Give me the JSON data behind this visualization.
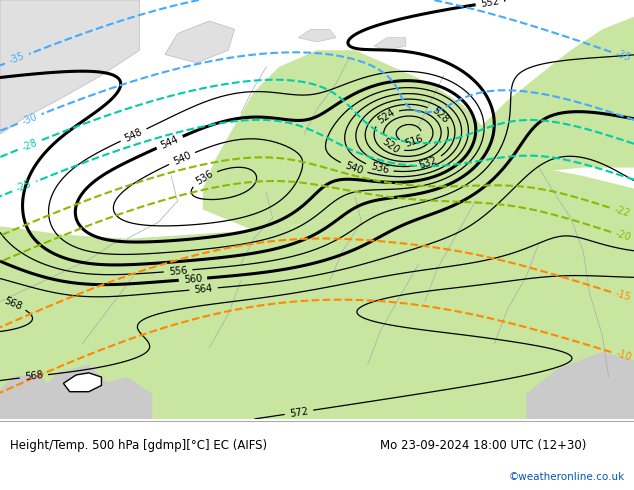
{
  "title_left": "Height/Temp. 500 hPa [gdmp][°C] EC (AIFS)",
  "title_right": "Mo 23-09-2024 18:00 UTC (12+30)",
  "credit": "©weatheronline.co.uk",
  "bg_color_land_light": "#c8e6a0",
  "bg_color_sea": "#d8eef8",
  "bg_color_polar": "#e0e0e0",
  "text_color": "#000000",
  "credit_color": "#0055bb",
  "height_contour_color": "#000000",
  "temp_contour_blue_color": "#44aaff",
  "temp_contour_cyan_color": "#00ccaa",
  "temp_contour_green_color": "#88bb00",
  "temp_contour_orange_color": "#ff8800",
  "footer_bg": "#ffffff",
  "figsize": [
    6.34,
    4.9
  ],
  "dpi": 100
}
